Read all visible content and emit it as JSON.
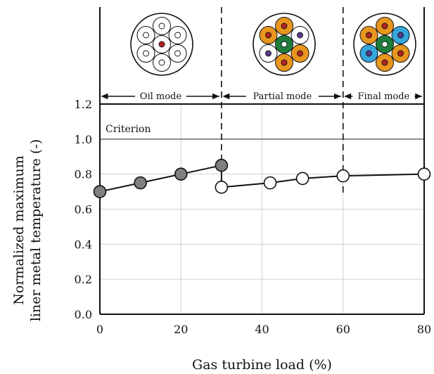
{
  "chart_data": {
    "type": "line",
    "xlabel": "Gas turbine load (%)",
    "ylabel": [
      "Normalized maximum",
      "liner metal temperature (-)"
    ],
    "xlim": [
      0,
      80
    ],
    "ylim": [
      0.0,
      1.2
    ],
    "x_ticks": [
      "0",
      "20",
      "40",
      "60",
      "80"
    ],
    "y_ticks": [
      "0.0",
      "0.2",
      "0.4",
      "0.6",
      "0.8",
      "1.0",
      "1.2"
    ],
    "grid": true,
    "criterion": {
      "label": "Criterion",
      "value": 1.0
    },
    "mode_boundaries": [
      30,
      60
    ],
    "modes": [
      {
        "label": "Oil mode",
        "x_start": 0,
        "x_end": 30
      },
      {
        "label": "Partial mode",
        "x_start": 30,
        "x_end": 60
      },
      {
        "label": "Final mode",
        "x_start": 60,
        "x_end": 80
      }
    ],
    "series": [
      {
        "marker": "filled",
        "color": "#808080",
        "points": [
          [
            0,
            0.7
          ],
          [
            10,
            0.75
          ],
          [
            20,
            0.8
          ],
          [
            30,
            0.85
          ]
        ]
      },
      {
        "marker": "open",
        "color": "#ffffff",
        "points": [
          [
            30,
            0.725
          ],
          [
            42,
            0.75
          ],
          [
            50,
            0.775
          ],
          [
            60,
            0.79
          ],
          [
            80,
            0.8
          ]
        ]
      }
    ]
  },
  "burner_diagrams": [
    {
      "mode": "Oil mode",
      "center": "#ffffff",
      "center_dot": "#b22222",
      "outer": [
        "#ffffff",
        "#ffffff",
        "#ffffff",
        "#ffffff",
        "#ffffff",
        "#ffffff"
      ],
      "outer_dot": [
        "#ffffff",
        "#ffffff",
        "#ffffff",
        "#ffffff",
        "#ffffff",
        "#ffffff"
      ]
    },
    {
      "mode": "Partial mode",
      "center": "#1e7d3c",
      "center_dot": "#ffffff",
      "outer": [
        "#e8961e",
        "#ffffff",
        "#e8961e",
        "#e8961e",
        "#ffffff",
        "#e8961e"
      ],
      "outer_dot": [
        "#b22222",
        "#5a3a8c",
        "#b22222",
        "#b22222",
        "#5a3a8c",
        "#b22222"
      ]
    },
    {
      "mode": "Final mode",
      "center": "#1e7d3c",
      "center_dot": "#ffffff",
      "outer": [
        "#e8961e",
        "#35a7dc",
        "#e8961e",
        "#e8961e",
        "#35a7dc",
        "#e8961e"
      ],
      "outer_dot": [
        "#b22222",
        "#5a3a8c",
        "#b22222",
        "#b22222",
        "#5a3a8c",
        "#b22222"
      ]
    }
  ]
}
